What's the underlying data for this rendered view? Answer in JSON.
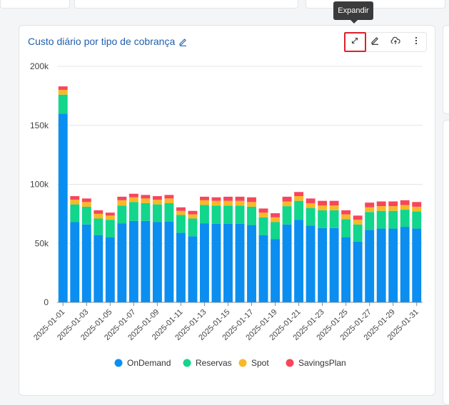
{
  "page": {
    "tooltip": "Expandir",
    "card_title": "Custo diário por tipo de cobrança"
  },
  "toolbar": {
    "icons": [
      "expand-icon",
      "edit-icon",
      "cloud-upload-icon",
      "more-vertical-icon"
    ]
  },
  "colors": {
    "OnDemand": "#0b8ef0",
    "Reservas": "#11d68c",
    "Spot": "#f7b928",
    "SavingsPlan": "#f7465b",
    "title": "#2160ad",
    "highlight": "#e0202a"
  },
  "chart_data": {
    "type": "bar",
    "stacked": true,
    "ylim": [
      0,
      200000
    ],
    "y_ticks": [
      0,
      50000,
      100000,
      150000,
      200000
    ],
    "y_tick_labels": [
      "0",
      "50k",
      "100k",
      "150k",
      "200k"
    ],
    "grid": true,
    "legend_position": "bottom",
    "categories": [
      "2025-01-01",
      "2025-01-02",
      "2025-01-03",
      "2025-01-04",
      "2025-01-05",
      "2025-01-06",
      "2025-01-07",
      "2025-01-08",
      "2025-01-09",
      "2025-01-10",
      "2025-01-11",
      "2025-01-12",
      "2025-01-13",
      "2025-01-14",
      "2025-01-15",
      "2025-01-16",
      "2025-01-17",
      "2025-01-18",
      "2025-01-19",
      "2025-01-20",
      "2025-01-21",
      "2025-01-22",
      "2025-01-23",
      "2025-01-24",
      "2025-01-25",
      "2025-01-26",
      "2025-01-27",
      "2025-01-28",
      "2025-01-29",
      "2025-01-30",
      "2025-01-31"
    ],
    "x_tick_labels": [
      "2025-01-01",
      "2025-01-03",
      "2025-01-05",
      "2025-01-07",
      "2025-01-09",
      "2025-01-11",
      "2025-01-13",
      "2025-01-15",
      "2025-01-17",
      "2025-01-19",
      "2025-01-21",
      "2025-01-23",
      "2025-01-25",
      "2025-01-27",
      "2025-01-29",
      "2025-01-31"
    ],
    "series": [
      {
        "name": "OnDemand",
        "values": [
          160000,
          68000,
          66000,
          57000,
          55000,
          67000,
          69000,
          69000,
          68000,
          68500,
          59000,
          56000,
          67000,
          66500,
          66500,
          66500,
          65500,
          57000,
          53500,
          66000,
          70000,
          65000,
          63000,
          63000,
          55000,
          51500,
          61500,
          62500,
          62500,
          64000,
          62500
        ]
      },
      {
        "name": "Reservas",
        "values": [
          16000,
          15000,
          15000,
          14000,
          15000,
          15000,
          16000,
          15000,
          15000,
          15500,
          15000,
          15000,
          15500,
          15500,
          15500,
          15500,
          15500,
          15000,
          14500,
          15500,
          16000,
          15000,
          15000,
          15000,
          15500,
          14500,
          15000,
          15000,
          15000,
          14500,
          14500
        ]
      },
      {
        "name": "Spot",
        "values": [
          4000,
          4000,
          4000,
          4000,
          3500,
          4500,
          4000,
          4000,
          4000,
          4000,
          3500,
          3500,
          4000,
          4000,
          4000,
          4000,
          4000,
          4000,
          4000,
          4000,
          4000,
          4000,
          4000,
          4000,
          4000,
          4000,
          4000,
          4000,
          4000,
          4000,
          4000
        ]
      },
      {
        "name": "SavingsPlan",
        "values": [
          3000,
          3000,
          3000,
          3000,
          2500,
          3000,
          3000,
          3000,
          3000,
          3000,
          3000,
          3000,
          3000,
          3000,
          3500,
          3500,
          4000,
          3500,
          3500,
          4000,
          3500,
          4000,
          4000,
          4000,
          3500,
          3500,
          4000,
          4000,
          4000,
          4000,
          4000
        ]
      }
    ]
  }
}
